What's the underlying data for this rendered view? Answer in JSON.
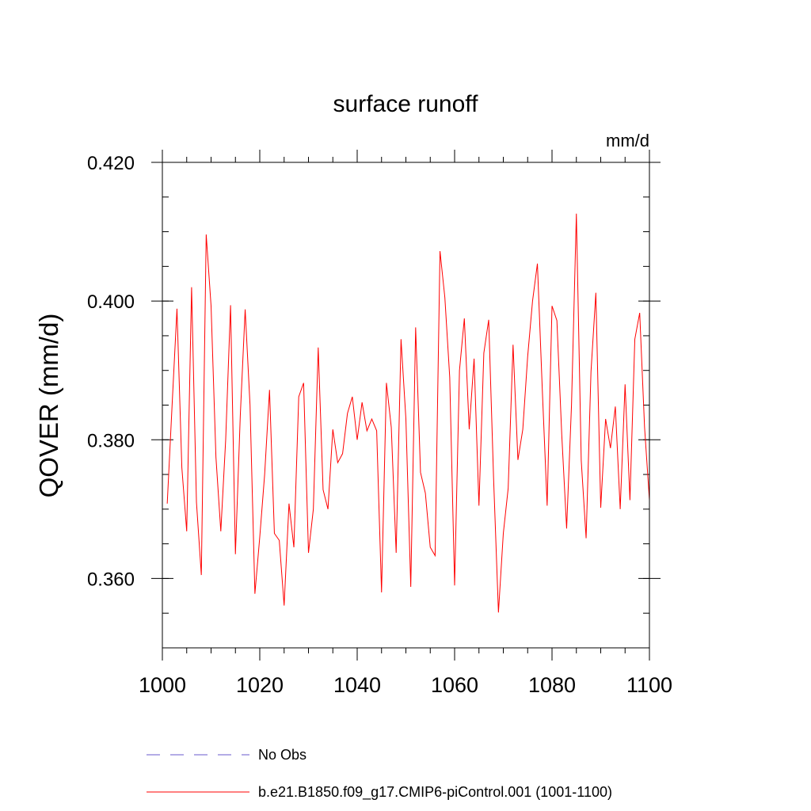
{
  "chart_data": {
    "type": "line",
    "title": "surface runoff",
    "units": "mm/d",
    "ylabel": "QOVER  (mm/d)",
    "xlabel": "",
    "xlim": [
      1000,
      1100
    ],
    "ylim": [
      0.35,
      0.42
    ],
    "x_major_ticks": [
      1000,
      1020,
      1040,
      1060,
      1080,
      1100
    ],
    "x_minor_tick_step": 5,
    "x_tick_labels": [
      "1000",
      "1020",
      "1040",
      "1060",
      "1080",
      "1100"
    ],
    "y_major_ticks": [
      0.36,
      0.38,
      0.4,
      0.42
    ],
    "y_minor_tick_step": 0.005,
    "y_tick_labels": [
      "0.360",
      "0.380",
      "0.400",
      "0.420"
    ],
    "grid": false,
    "legend_position": "bottom",
    "legend": [
      {
        "label": "No Obs",
        "color": "#6a5acd",
        "style": "dashed"
      },
      {
        "label": "b.e21.B1850.f09_g17.CMIP6-piControl.001 (1001-1100)",
        "color": "#ff0000",
        "style": "solid"
      }
    ],
    "series": [
      {
        "name": "b.e21.B1850.f09_g17.CMIP6-piControl.001 (1001-1100)",
        "color": "#ff0000",
        "x": [
          1001,
          1002,
          1003,
          1004,
          1005,
          1006,
          1007,
          1008,
          1009,
          1010,
          1011,
          1012,
          1013,
          1014,
          1015,
          1016,
          1017,
          1018,
          1019,
          1020,
          1021,
          1022,
          1023,
          1024,
          1025,
          1026,
          1027,
          1028,
          1029,
          1030,
          1031,
          1032,
          1033,
          1034,
          1035,
          1036,
          1037,
          1038,
          1039,
          1040,
          1041,
          1042,
          1043,
          1044,
          1045,
          1046,
          1047,
          1048,
          1049,
          1050,
          1051,
          1052,
          1053,
          1054,
          1055,
          1056,
          1057,
          1058,
          1059,
          1060,
          1061,
          1062,
          1063,
          1064,
          1065,
          1066,
          1067,
          1068,
          1069,
          1070,
          1071,
          1072,
          1073,
          1074,
          1075,
          1076,
          1077,
          1078,
          1079,
          1080,
          1081,
          1082,
          1083,
          1084,
          1085,
          1086,
          1087,
          1088,
          1089,
          1090,
          1091,
          1092,
          1093,
          1094,
          1095,
          1096,
          1097,
          1098,
          1099,
          1100
        ],
        "y": [
          0.3708,
          0.385,
          0.3989,
          0.376,
          0.3668,
          0.402,
          0.371,
          0.3605,
          0.4096,
          0.3993,
          0.3775,
          0.3668,
          0.38,
          0.3994,
          0.3635,
          0.3835,
          0.3988,
          0.385,
          0.3578,
          0.366,
          0.375,
          0.3872,
          0.3665,
          0.3655,
          0.3561,
          0.3708,
          0.3645,
          0.3862,
          0.3882,
          0.3637,
          0.37,
          0.3933,
          0.3728,
          0.37,
          0.3815,
          0.3767,
          0.378,
          0.3838,
          0.3862,
          0.38,
          0.3854,
          0.3813,
          0.383,
          0.3813,
          0.358,
          0.3882,
          0.3818,
          0.3637,
          0.3945,
          0.383,
          0.3588,
          0.3962,
          0.3753,
          0.3723,
          0.3645,
          0.3633,
          0.4072,
          0.4005,
          0.389,
          0.359,
          0.39,
          0.3975,
          0.3815,
          0.3917,
          0.3705,
          0.3925,
          0.3973,
          0.3745,
          0.3551,
          0.3665,
          0.373,
          0.3937,
          0.3771,
          0.3815,
          0.392,
          0.4,
          0.4054,
          0.3873,
          0.3705,
          0.3993,
          0.3972,
          0.3807,
          0.3672,
          0.385,
          0.4126,
          0.377,
          0.3658,
          0.3898,
          0.4012,
          0.3702,
          0.383,
          0.3788,
          0.3848,
          0.37,
          0.388,
          0.3713,
          0.3945,
          0.3983,
          0.3818,
          0.3713
        ]
      }
    ]
  }
}
